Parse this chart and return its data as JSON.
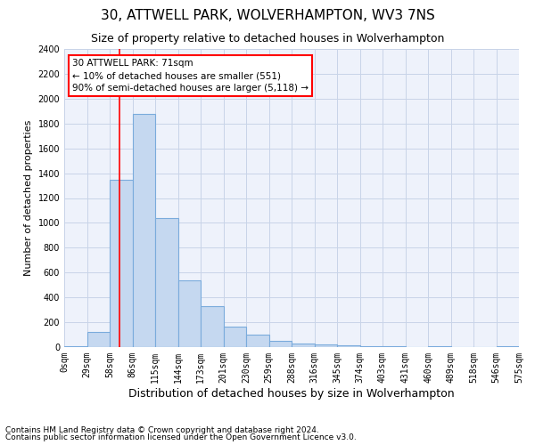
{
  "title": "30, ATTWELL PARK, WOLVERHAMPTON, WV3 7NS",
  "subtitle": "Size of property relative to detached houses in Wolverhampton",
  "xlabel": "Distribution of detached houses by size in Wolverhampton",
  "ylabel": "Number of detached properties",
  "footer1": "Contains HM Land Registry data © Crown copyright and database right 2024.",
  "footer2": "Contains public sector information licensed under the Open Government Licence v3.0.",
  "bin_labels": [
    "0sqm",
    "29sqm",
    "58sqm",
    "86sqm",
    "115sqm",
    "144sqm",
    "173sqm",
    "201sqm",
    "230sqm",
    "259sqm",
    "288sqm",
    "316sqm",
    "345sqm",
    "374sqm",
    "403sqm",
    "431sqm",
    "460sqm",
    "489sqm",
    "518sqm",
    "546sqm",
    "575sqm"
  ],
  "bar_values": [
    10,
    120,
    1350,
    1880,
    1040,
    540,
    330,
    165,
    100,
    50,
    30,
    20,
    15,
    10,
    5,
    0,
    5,
    0,
    0,
    5
  ],
  "bar_color": "#c5d8f0",
  "bar_edge_color": "#7aabdc",
  "red_line_x": 2.45,
  "annotation_line1": "30 ATTWELL PARK: 71sqm",
  "annotation_line2": "← 10% of detached houses are smaller (551)",
  "annotation_line3": "90% of semi-detached houses are larger (5,118) →",
  "annotation_box_color": "white",
  "annotation_box_edge": "red",
  "ylim": [
    0,
    2400
  ],
  "yticks": [
    0,
    200,
    400,
    600,
    800,
    1000,
    1200,
    1400,
    1600,
    1800,
    2000,
    2200,
    2400
  ],
  "grid_color": "#c8d4e8",
  "background_color": "#eef2fb",
  "title_fontsize": 11,
  "subtitle_fontsize": 9,
  "xlabel_fontsize": 9,
  "ylabel_fontsize": 8,
  "tick_fontsize": 7,
  "annotation_fontsize": 7.5,
  "footer_fontsize": 6.5
}
